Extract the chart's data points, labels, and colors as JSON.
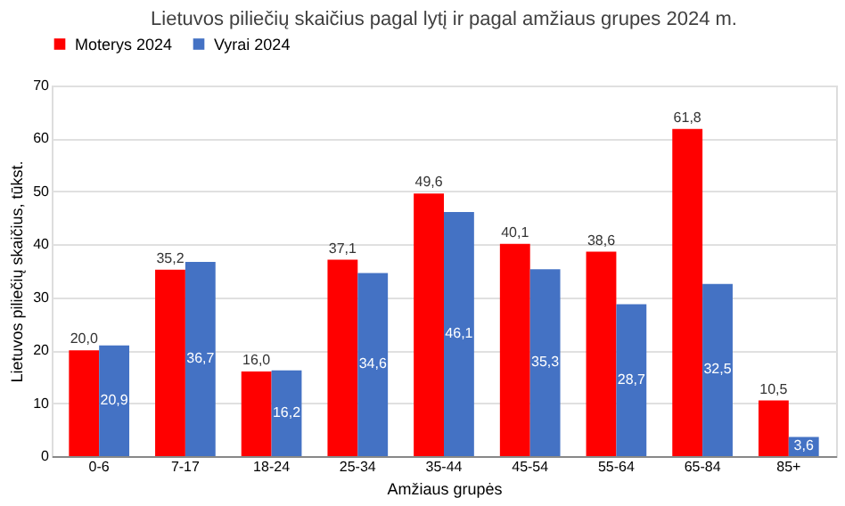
{
  "chart_data": {
    "type": "bar",
    "title": "Lietuvos piliečių skaičius pagal lytį ir pagal amžiaus grupes 2024 m.",
    "xlabel": "Amžiaus grupės",
    "ylabel": "Lietuvos piliečių skaičius, tūkst.",
    "categories": [
      "0-6",
      "7-17",
      "18-24",
      "25-34",
      "35-44",
      "45-54",
      "55-64",
      "65-84",
      "85+"
    ],
    "series": [
      {
        "name": "Moterys 2024",
        "color": "#ff0000",
        "values": [
          20.0,
          35.2,
          16.0,
          37.1,
          49.6,
          40.1,
          38.6,
          61.8,
          10.5
        ],
        "value_labels": [
          "20,0",
          "35,2",
          "16,0",
          "37,1",
          "49,6",
          "40,1",
          "38,6",
          "61,8",
          "10,5"
        ]
      },
      {
        "name": "Vyrai 2024",
        "color": "#4472c4",
        "values": [
          20.9,
          36.7,
          16.2,
          34.6,
          46.1,
          35.3,
          28.7,
          32.5,
          3.6
        ],
        "value_labels": [
          "20,9",
          "36,7",
          "16,2",
          "34,6",
          "46,1",
          "35,3",
          "28,7",
          "32,5",
          "3,6"
        ]
      }
    ],
    "ylim": [
      0,
      70
    ],
    "yticks": [
      0,
      10,
      20,
      30,
      40,
      50,
      60,
      70
    ],
    "grid": "y",
    "legend": "top"
  }
}
